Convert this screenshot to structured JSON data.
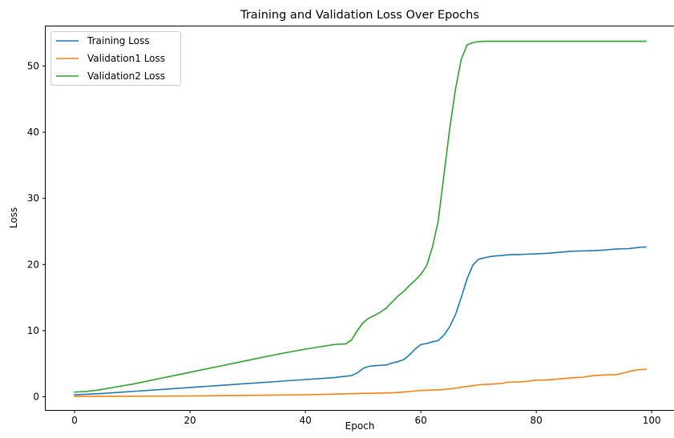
{
  "chart_data": {
    "type": "line",
    "title": "Training and Validation Loss Over Epochs",
    "xlabel": "Epoch",
    "ylabel": "Loss",
    "xlim": [
      -5,
      104
    ],
    "ylim": [
      -2,
      56
    ],
    "xticks": [
      0,
      20,
      40,
      60,
      80,
      100
    ],
    "xtick_labels": [
      "0",
      "20",
      "40",
      "60",
      "80",
      "100"
    ],
    "yticks": [
      0,
      10,
      20,
      30,
      40,
      50
    ],
    "ytick_labels": [
      "0",
      "10",
      "20",
      "30",
      "40",
      "50"
    ],
    "grid": false,
    "legend": "upper-left",
    "series": [
      {
        "name": "Training Loss",
        "color": "#1f77b4",
        "x": [
          0,
          5,
          10,
          15,
          20,
          25,
          30,
          35,
          40,
          45,
          48,
          49,
          50,
          51,
          52,
          53,
          54,
          55,
          56,
          57,
          58,
          59,
          60,
          61,
          62,
          63,
          64,
          65,
          66,
          67,
          68,
          69,
          70,
          71,
          72,
          73,
          74,
          75,
          76,
          77,
          78,
          80,
          82,
          84,
          86,
          88,
          90,
          92,
          94,
          96,
          97,
          98,
          99
        ],
        "y": [
          0.3,
          0.5,
          0.8,
          1.1,
          1.4,
          1.7,
          2.0,
          2.3,
          2.6,
          2.9,
          3.2,
          3.6,
          4.3,
          4.6,
          4.7,
          4.75,
          4.8,
          5.1,
          5.3,
          5.6,
          6.3,
          7.2,
          7.9,
          8.05,
          8.3,
          8.5,
          9.3,
          10.6,
          12.4,
          15.0,
          17.8,
          19.9,
          20.8,
          21.0,
          21.2,
          21.3,
          21.35,
          21.45,
          21.5,
          21.5,
          21.55,
          21.6,
          21.7,
          21.85,
          22.0,
          22.05,
          22.1,
          22.2,
          22.35,
          22.4,
          22.5,
          22.6,
          22.65
        ]
      },
      {
        "name": "Validation1 Loss",
        "color": "#ff7f0e",
        "x": [
          0,
          10,
          20,
          30,
          40,
          45,
          50,
          55,
          57,
          58,
          60,
          63,
          64,
          66,
          68,
          70,
          71,
          72,
          74,
          75,
          77,
          78,
          80,
          82,
          84,
          86,
          88,
          90,
          92,
          94,
          96,
          97,
          98,
          99
        ],
        "y": [
          0.05,
          0.08,
          0.12,
          0.2,
          0.3,
          0.4,
          0.5,
          0.6,
          0.7,
          0.8,
          0.95,
          1.05,
          1.1,
          1.3,
          1.55,
          1.8,
          1.85,
          1.9,
          2.0,
          2.2,
          2.25,
          2.3,
          2.5,
          2.55,
          2.7,
          2.85,
          2.95,
          3.2,
          3.3,
          3.35,
          3.8,
          4.0,
          4.1,
          4.15
        ]
      },
      {
        "name": "Validation2 Loss",
        "color": "#2ca02c",
        "x": [
          0,
          2,
          4,
          6,
          8,
          10,
          15,
          20,
          25,
          30,
          35,
          40,
          45,
          47,
          48,
          49,
          50,
          51,
          52,
          53,
          54,
          55,
          56,
          57,
          58,
          59,
          60,
          61,
          62,
          63,
          64,
          65,
          66,
          67,
          68,
          69,
          70,
          71,
          72,
          74,
          76,
          80,
          85,
          90,
          95,
          99
        ],
        "y": [
          0.7,
          0.8,
          1.0,
          1.3,
          1.6,
          1.9,
          2.8,
          3.7,
          4.6,
          5.5,
          6.4,
          7.2,
          7.9,
          8.0,
          8.6,
          10.0,
          11.2,
          11.9,
          12.3,
          12.8,
          13.4,
          14.3,
          15.2,
          15.9,
          16.8,
          17.6,
          18.5,
          19.8,
          22.6,
          26.5,
          33.5,
          40.5,
          46.5,
          51.0,
          53.2,
          53.55,
          53.7,
          53.75,
          53.75,
          53.75,
          53.75,
          53.75,
          53.75,
          53.75,
          53.75,
          53.75
        ]
      }
    ]
  }
}
